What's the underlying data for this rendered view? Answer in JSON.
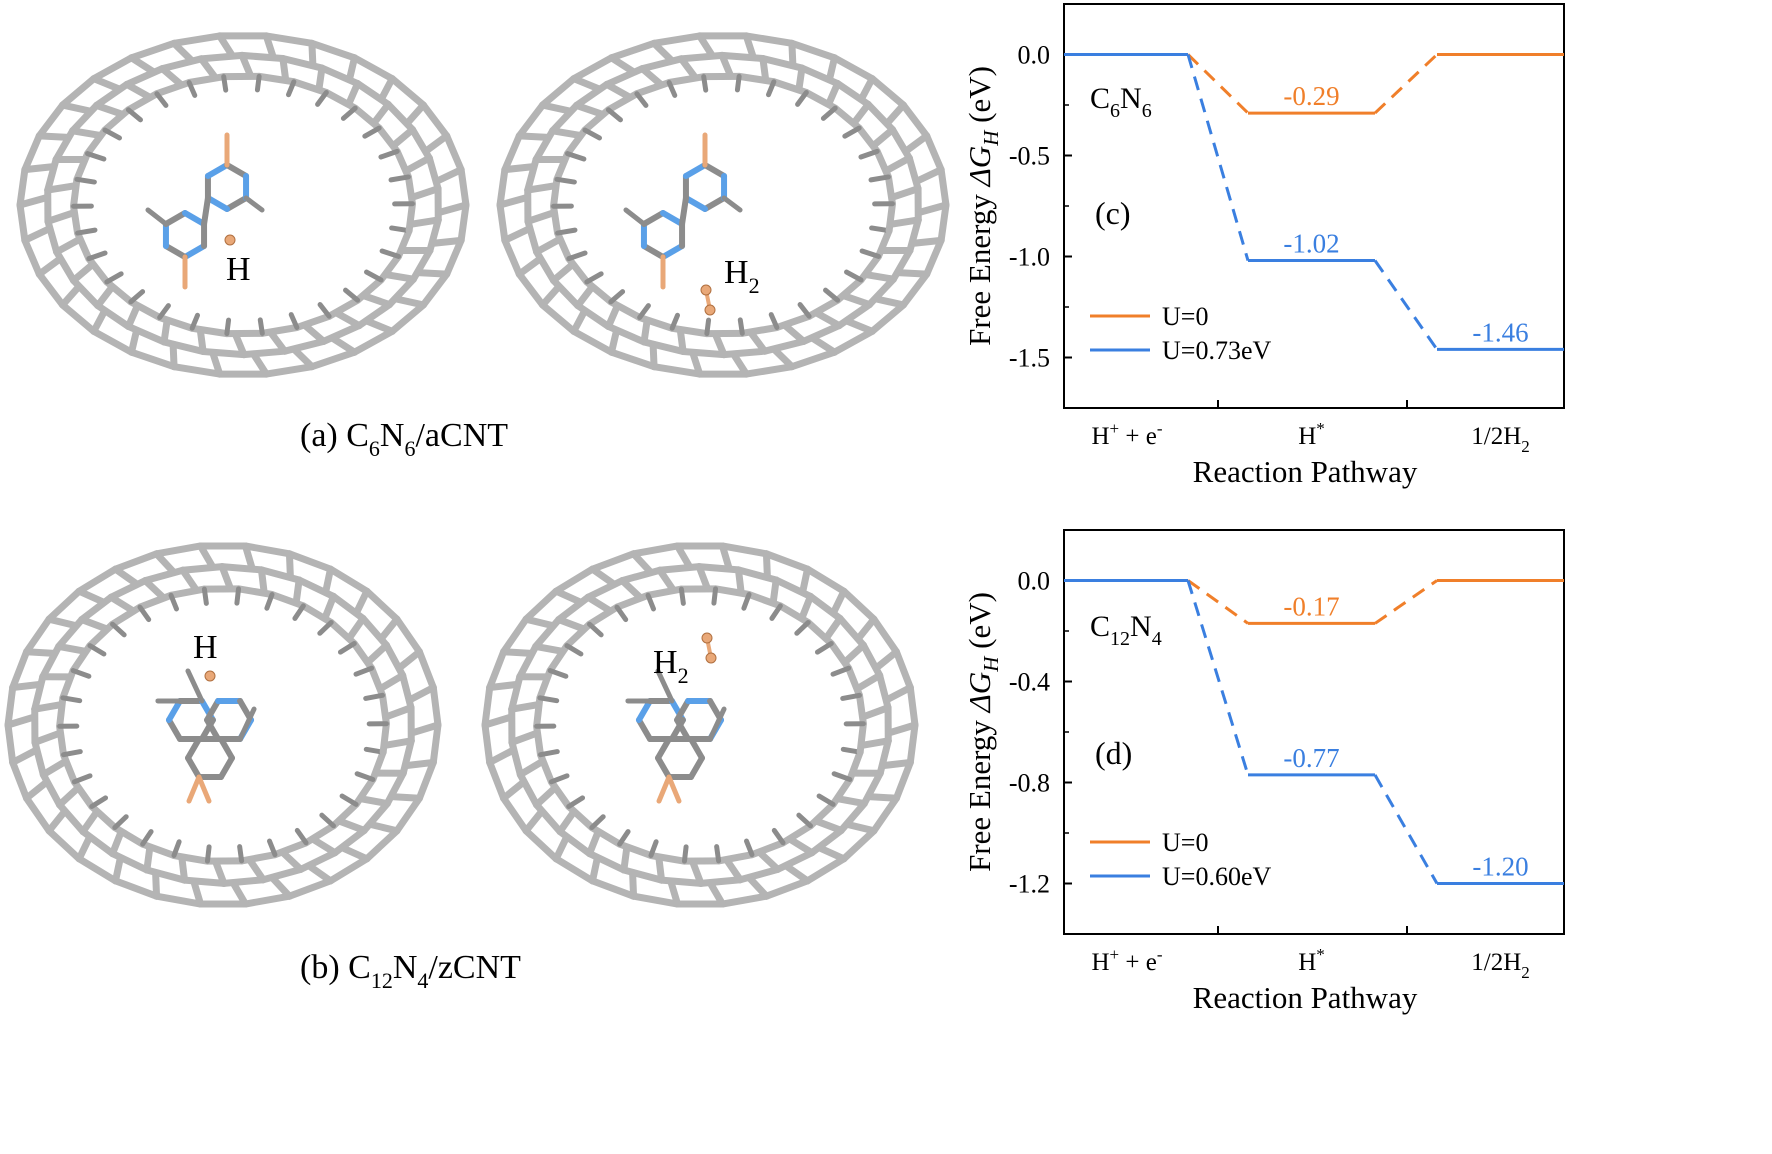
{
  "colors": {
    "orange": "#f07f2a",
    "blue": "#3a7fe0",
    "carbon": "#b4b4b4",
    "carbon_edge": "#8c8c8c",
    "nitrogen": "#5aa0e8",
    "hydrogen": "#e9a878"
  },
  "structures": {
    "a": {
      "caption_prefix": "(a) C",
      "caption_sub1": "6",
      "caption_mid": "N",
      "caption_sub2": "6",
      "caption_suffix": "/aCNT",
      "left_label": "H",
      "right_label": "H",
      "right_label_sub": "2"
    },
    "b": {
      "caption_prefix": "(b) C",
      "caption_sub1": "12",
      "caption_mid": "N",
      "caption_sub2": "4",
      "caption_suffix": "/zCNT",
      "left_label": "H",
      "right_label": "H",
      "right_label_sub": "2"
    }
  },
  "chart_data": [
    {
      "type": "line",
      "panel_label": "(c)",
      "system_prefix": "C",
      "system_sub1": "6",
      "system_mid": "N",
      "system_sub2": "6",
      "ylabel_prefix": "Free Energy ",
      "ylabel_symbol": "ΔG",
      "ylabel_sub": "H",
      "ylabel_suffix": " (eV)",
      "xlabel": "Reaction Pathway",
      "categories": [
        {
          "base": "H",
          "sup": "+",
          "mid": " + e",
          "sup2": "-",
          "sub": ""
        },
        {
          "base": "H",
          "sup": "*",
          "mid": "",
          "sup2": "",
          "sub": ""
        },
        {
          "base": "1/2H",
          "sup": "",
          "mid": "",
          "sup2": "",
          "sub": "2"
        }
      ],
      "ylim": [
        -1.75,
        0.25
      ],
      "yticks": [
        0.0,
        -0.5,
        -1.0,
        -1.5
      ],
      "ytick_labels": [
        "0.0",
        "-0.5",
        "-1.0",
        "-1.5"
      ],
      "series": [
        {
          "name": "U=0",
          "color": "#f07f2a",
          "values": [
            0.0,
            -0.29,
            0.0
          ],
          "labels": [
            "",
            "-0.29",
            ""
          ]
        },
        {
          "name": "U=0.73eV",
          "color": "#3a7fe0",
          "values": [
            0.0,
            -1.02,
            -1.46
          ],
          "labels": [
            "",
            "-1.02",
            "-1.46"
          ]
        }
      ]
    },
    {
      "type": "line",
      "panel_label": "(d)",
      "system_prefix": "C",
      "system_sub1": "12",
      "system_mid": "N",
      "system_sub2": "4",
      "ylabel_prefix": "Free Energy ",
      "ylabel_symbol": "ΔG",
      "ylabel_sub": "H",
      "ylabel_suffix": " (eV)",
      "xlabel": "Reaction Pathway",
      "categories": [
        {
          "base": "H",
          "sup": "+",
          "mid": " + e",
          "sup2": "-",
          "sub": ""
        },
        {
          "base": "H",
          "sup": "*",
          "mid": "",
          "sup2": "",
          "sub": ""
        },
        {
          "base": "1/2H",
          "sup": "",
          "mid": "",
          "sup2": "",
          "sub": "2"
        }
      ],
      "ylim": [
        -1.4,
        0.2
      ],
      "yticks": [
        0.0,
        -0.4,
        -0.8,
        -1.2
      ],
      "ytick_labels": [
        "0.0",
        "-0.4",
        "-0.8",
        "-1.2"
      ],
      "series": [
        {
          "name": "U=0",
          "color": "#f07f2a",
          "values": [
            0.0,
            -0.17,
            0.0
          ],
          "labels": [
            "",
            "-0.17",
            ""
          ]
        },
        {
          "name": "U=0.60eV",
          "color": "#3a7fe0",
          "values": [
            0.0,
            -0.77,
            -1.2
          ],
          "labels": [
            "",
            "-0.77",
            "-1.20"
          ]
        }
      ]
    }
  ]
}
